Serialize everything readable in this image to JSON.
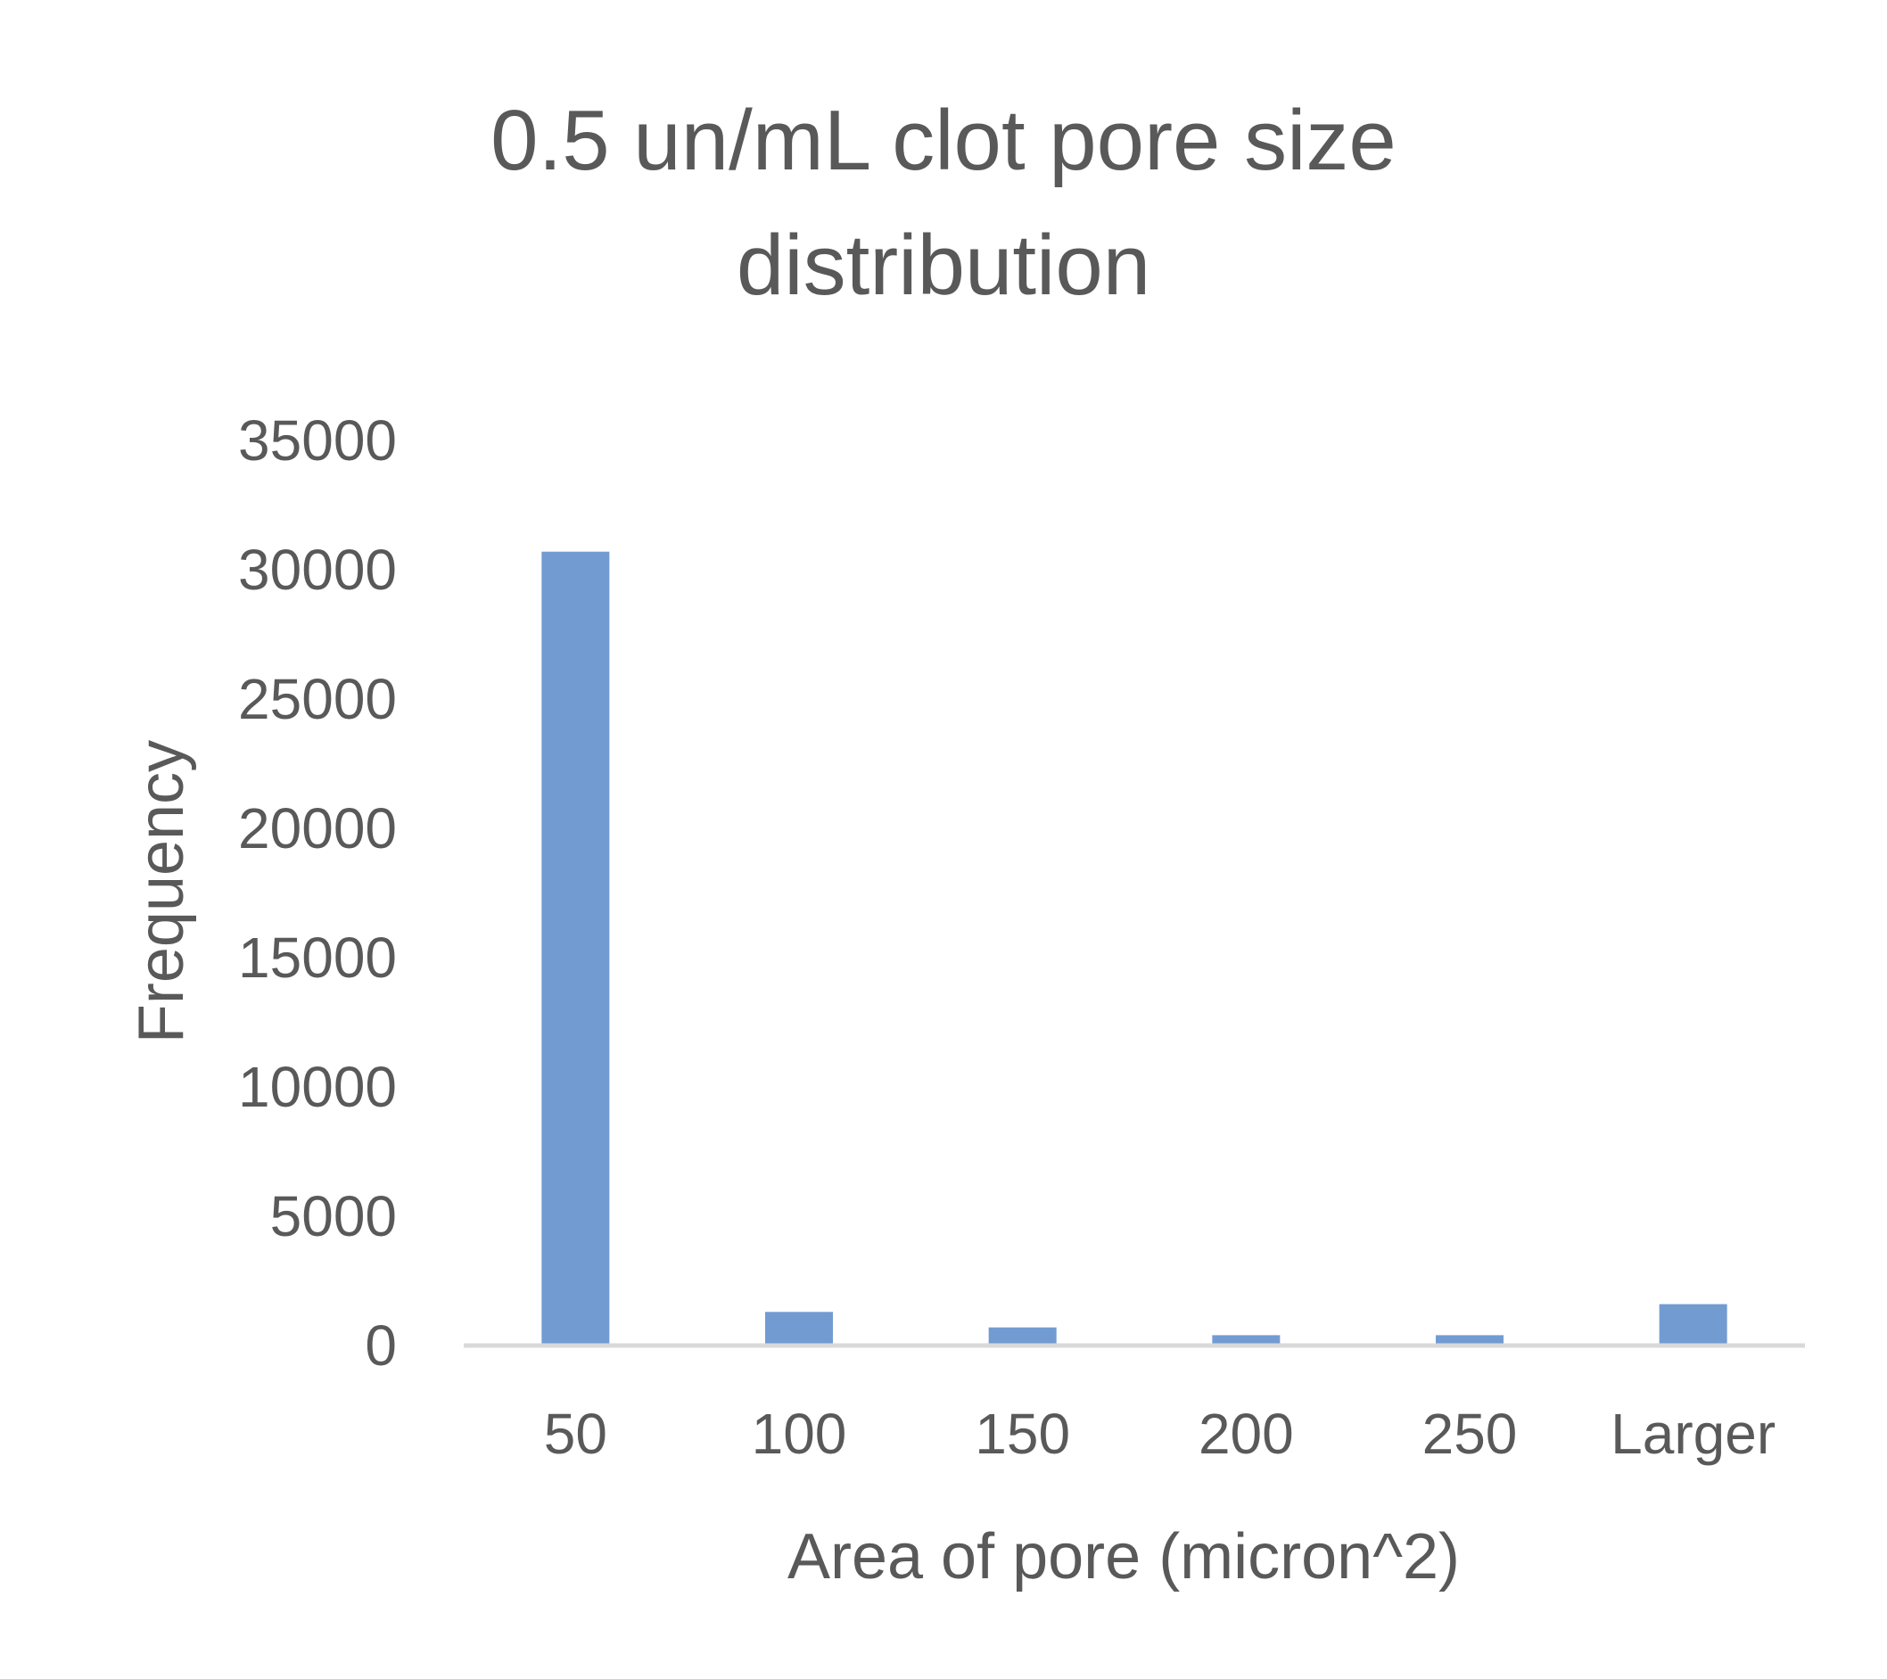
{
  "chart_data": {
    "type": "bar",
    "title": [
      "0.5 un/mL clot pore size",
      "distribution"
    ],
    "xlabel": "Area of pore (micron^2)",
    "ylabel": "Frequency",
    "categories": [
      "50",
      "100",
      "150",
      "200",
      "250",
      "Larger"
    ],
    "series": [
      {
        "values": [
          30700,
          1300,
          700,
          400,
          400,
          1600
        ],
        "color": "#729bd2"
      }
    ],
    "ylim": [
      0,
      35000
    ],
    "yticks": [
      0,
      5000,
      10000,
      15000,
      20000,
      25000,
      30000,
      35000
    ],
    "grid": false,
    "legend": "none",
    "axis_color": "#d9d9d9",
    "text_color": "#595959"
  }
}
